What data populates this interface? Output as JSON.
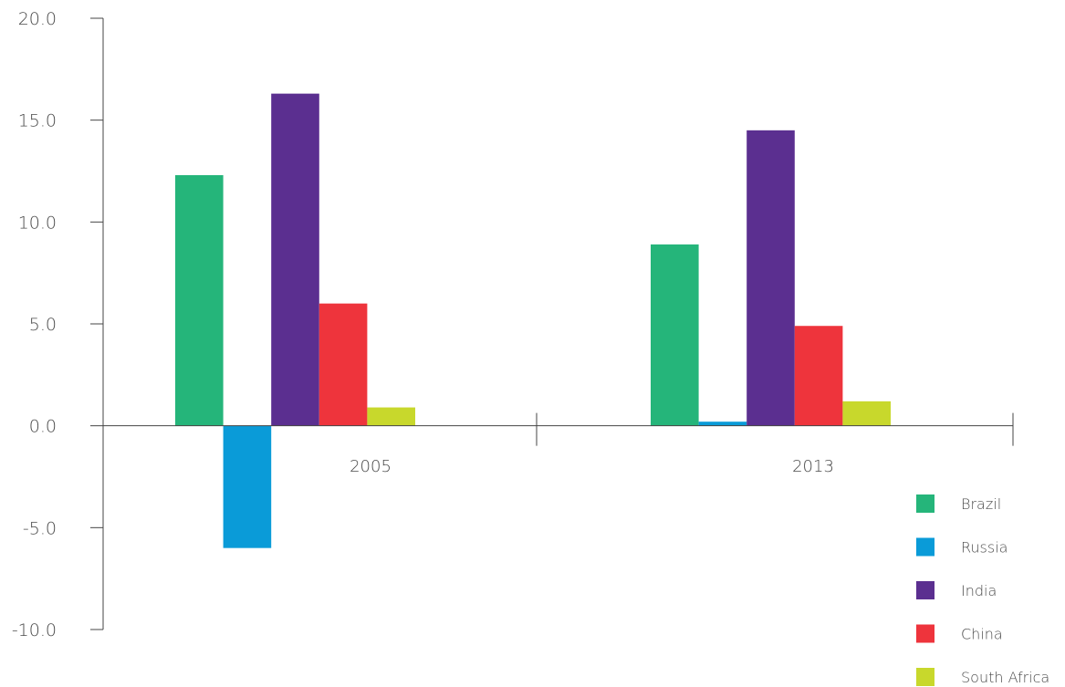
{
  "chart_data": {
    "type": "bar",
    "categories": [
      "2005",
      "2013"
    ],
    "series": [
      {
        "name": "Brazil",
        "values": [
          12.3,
          8.9
        ],
        "color": "#25b57a"
      },
      {
        "name": "Russia",
        "values": [
          -6.0,
          0.2
        ],
        "color": "#0a9bd8"
      },
      {
        "name": "India",
        "values": [
          16.3,
          14.5
        ],
        "color": "#5b2f90"
      },
      {
        "name": "China",
        "values": [
          6.0,
          4.9
        ],
        "color": "#ee343c"
      },
      {
        "name": "South Africa",
        "values": [
          0.9,
          1.2
        ],
        "color": "#c8d82c"
      }
    ],
    "yticks": [
      "20.0",
      "15.0",
      "10.0",
      "5.0",
      "0.0",
      "-5.0",
      "-10.0"
    ],
    "ylim": [
      -10,
      20
    ],
    "title": "",
    "xlabel": "",
    "ylabel": "",
    "grid": false,
    "legend_position": "bottom-right"
  }
}
